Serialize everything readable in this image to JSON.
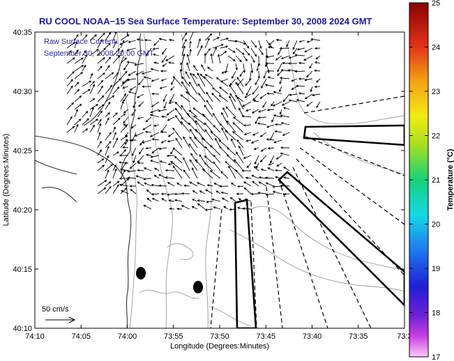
{
  "chart_data": {
    "type": "vector-map",
    "title": "RU COOL  NOAA−15  Sea Surface Temperature:  September 30, 2008 2024 GMT",
    "annotation_lines": [
      "Raw Surface Current:",
      "September 30, 2008 20:00 GMT"
    ],
    "xlabel": "Longitude (Degrees:Minutes)",
    "ylabel": "Latitude (Degrees:Minutes)",
    "x_ticks": [
      "74:10",
      "74:05",
      "74:00",
      "73:55",
      "73:50",
      "73:45",
      "73:40",
      "73:35",
      "73:3"
    ],
    "y_ticks": [
      "40:35",
      "40:30",
      "40:25",
      "40:20",
      "40:15",
      "40:10"
    ],
    "xlim_deg": [
      -74.1667,
      -73.5
    ],
    "ylim_deg": [
      40.1667,
      40.5833
    ],
    "scale_label": "50 cm/s",
    "colorbar": {
      "label": "Temperature (°C)",
      "range": [
        17,
        25
      ],
      "ticks": [
        "25",
        "24",
        "23",
        "22",
        "21",
        "20",
        "19",
        "18",
        "17"
      ]
    }
  }
}
